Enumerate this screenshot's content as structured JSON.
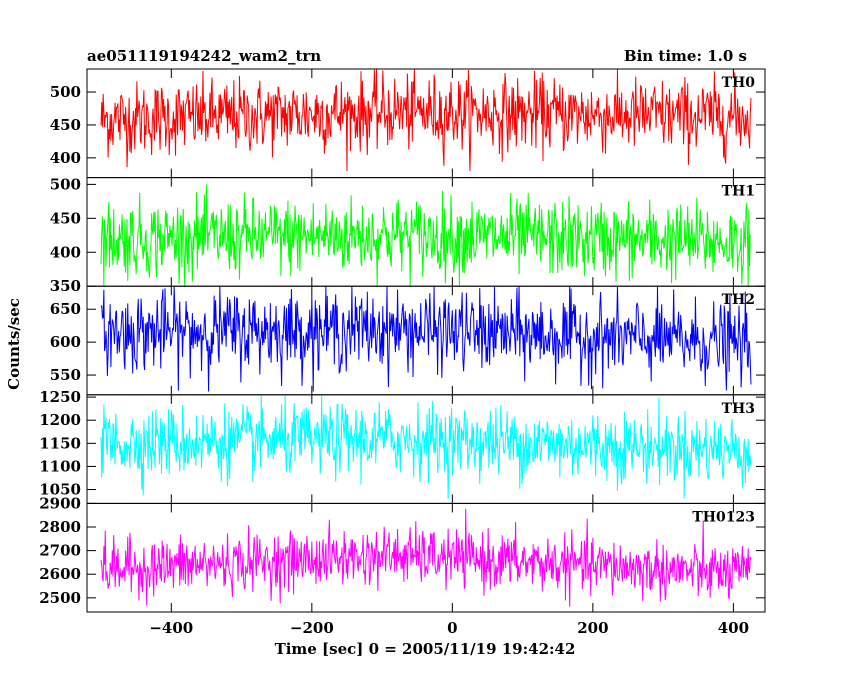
{
  "chart_data": {
    "type": "line",
    "title_left": "ae051119194242_wam2_trn",
    "title_right": "Bin time: 1.0 s",
    "xlabel": "Time [sec] 0 = 2005/11/19 19:42:42",
    "ylabel": "Counts/sec",
    "xlim": [
      -520,
      445
    ],
    "x_ticks": [
      -400,
      -200,
      0,
      200,
      400
    ],
    "x_tick_labels": [
      "−400",
      "−200",
      "0",
      "200",
      "400"
    ],
    "x_range": [
      -500,
      425
    ],
    "panels": [
      {
        "name": "TH0",
        "color": "#ff0000",
        "ylim": [
          370,
          535
        ],
        "ticks": [
          400,
          450,
          500
        ],
        "tick_labels": [
          "400",
          "450",
          "500"
        ],
        "mean_start": 458,
        "mean_mid": 470,
        "mean_end": 462,
        "noise": 28,
        "spike_min": 380,
        "spike_max": 535
      },
      {
        "name": "TH1",
        "color": "#00ff00",
        "ylim": [
          350,
          510
        ],
        "ticks": [
          350,
          400,
          450,
          500
        ],
        "tick_labels": [
          "350",
          "400",
          "450",
          "500"
        ],
        "mean_start": 420,
        "mean_mid": 425,
        "mean_end": 415,
        "noise": 28,
        "spike_min": 350,
        "spike_max": 500
      },
      {
        "name": "TH2",
        "color": "#0000ff",
        "ylim": [
          520,
          685
        ],
        "ticks": [
          550,
          600,
          650
        ],
        "tick_labels": [
          "550",
          "600",
          "650"
        ],
        "mean_start": 615,
        "mean_mid": 620,
        "mean_end": 598,
        "noise": 30,
        "spike_min": 525,
        "spike_max": 685
      },
      {
        "name": "TH3",
        "color": "#00ffff",
        "ylim": [
          1020,
          1255
        ],
        "ticks": [
          1050,
          1100,
          1150,
          1200,
          1250
        ],
        "tick_labels": [
          "1050",
          "1100",
          "1150",
          "1200",
          "1250"
        ],
        "mean_start": 1150,
        "mean_mid": 1160,
        "mean_end": 1135,
        "noise": 38,
        "spike_min": 1030,
        "spike_max": 1255
      },
      {
        "name": "TH0123",
        "color": "#ff00ff",
        "ylim": [
          2440,
          2900
        ],
        "ticks": [
          2500,
          2600,
          2700,
          2800,
          2900
        ],
        "tick_labels": [
          "2500",
          "2600",
          "2700",
          "2800",
          "2900"
        ],
        "mean_start": 2620,
        "mean_mid": 2680,
        "mean_end": 2600,
        "noise": 60,
        "spike_min": 2450,
        "spike_max": 2900
      }
    ]
  }
}
